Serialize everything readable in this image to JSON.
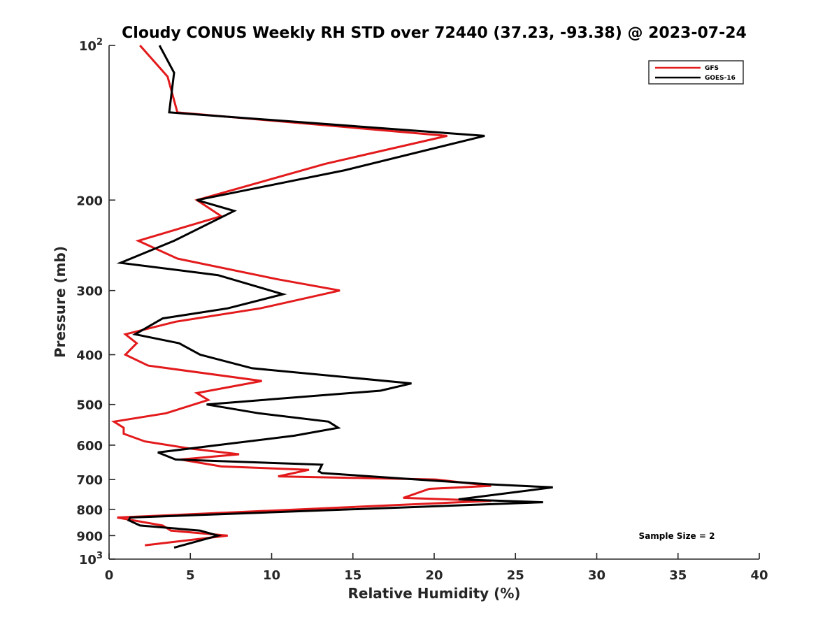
{
  "chart_data": {
    "type": "line",
    "title": "Cloudy CONUS Weekly RH STD over 72440 (37.23, -93.38) @ 2023-07-24",
    "xlabel": "Relative Humidity (%)",
    "ylabel": "Pressure (mb)",
    "xlim": [
      0,
      40
    ],
    "ylim": [
      100,
      1000
    ],
    "yscale": "log",
    "y_reversed": true,
    "x_ticks": [
      "0",
      "5",
      "10",
      "15",
      "20",
      "25",
      "30",
      "35",
      "40"
    ],
    "y_ticks": [
      {
        "value": 100,
        "label": "10",
        "sup": "2"
      },
      {
        "value": 200,
        "label": "200"
      },
      {
        "value": 300,
        "label": "300"
      },
      {
        "value": 400,
        "label": "400"
      },
      {
        "value": 500,
        "label": "500"
      },
      {
        "value": 600,
        "label": "600"
      },
      {
        "value": 700,
        "label": "700"
      },
      {
        "value": 800,
        "label": "800"
      },
      {
        "value": 900,
        "label": "900"
      },
      {
        "value": 1000,
        "label": "10",
        "sup": "3"
      }
    ],
    "legend_position": "top-right",
    "annotation": "Sample Size = 2",
    "series": [
      {
        "name": "GFS",
        "color": "#e31a1c",
        "points": [
          [
            1.9,
            100
          ],
          [
            3.6,
            115
          ],
          [
            4.2,
            135
          ],
          [
            20.8,
            150
          ],
          [
            13.3,
            170
          ],
          [
            5.4,
            200
          ],
          [
            6.9,
            215
          ],
          [
            1.8,
            240
          ],
          [
            4.2,
            260
          ],
          [
            10.3,
            285
          ],
          [
            14.2,
            300
          ],
          [
            9.3,
            325
          ],
          [
            4.1,
            345
          ],
          [
            1.0,
            365
          ],
          [
            1.7,
            380
          ],
          [
            1.0,
            400
          ],
          [
            2.4,
            420
          ],
          [
            9.4,
            450
          ],
          [
            5.4,
            475
          ],
          [
            6.1,
            490
          ],
          [
            3.5,
            520
          ],
          [
            0.3,
            540
          ],
          [
            0.9,
            555
          ],
          [
            0.9,
            570
          ],
          [
            2.2,
            590
          ],
          [
            5.1,
            610
          ],
          [
            8.0,
            625
          ],
          [
            4.4,
            640
          ],
          [
            6.9,
            660
          ],
          [
            12.3,
            670
          ],
          [
            10.4,
            690
          ],
          [
            20.1,
            700
          ],
          [
            23.5,
            720
          ],
          [
            19.7,
            730
          ],
          [
            18.1,
            760
          ],
          [
            23.5,
            770
          ],
          [
            0.5,
            830
          ],
          [
            3.3,
            860
          ],
          [
            3.8,
            880
          ],
          [
            7.3,
            900
          ],
          [
            2.2,
            940
          ]
        ]
      },
      {
        "name": "GOES-16",
        "color": "#000000",
        "points": [
          [
            3.1,
            100
          ],
          [
            4.0,
            113
          ],
          [
            3.7,
            135
          ],
          [
            23.1,
            150
          ],
          [
            14.5,
            175
          ],
          [
            5.4,
            200
          ],
          [
            7.7,
            210
          ],
          [
            4.0,
            240
          ],
          [
            0.7,
            265
          ],
          [
            6.7,
            280
          ],
          [
            10.7,
            305
          ],
          [
            7.3,
            325
          ],
          [
            3.3,
            340
          ],
          [
            1.6,
            365
          ],
          [
            4.3,
            380
          ],
          [
            5.6,
            400
          ],
          [
            8.8,
            425
          ],
          [
            18.6,
            455
          ],
          [
            16.7,
            470
          ],
          [
            6.0,
            500
          ],
          [
            9.2,
            520
          ],
          [
            13.5,
            540
          ],
          [
            14.1,
            555
          ],
          [
            11.4,
            575
          ],
          [
            3.0,
            620
          ],
          [
            4.1,
            640
          ],
          [
            13.1,
            655
          ],
          [
            12.9,
            675
          ],
          [
            13.1,
            680
          ],
          [
            23.3,
            715
          ],
          [
            27.3,
            725
          ],
          [
            21.5,
            765
          ],
          [
            26.7,
            775
          ],
          [
            1.3,
            830
          ],
          [
            1.2,
            840
          ],
          [
            1.9,
            860
          ],
          [
            5.6,
            880
          ],
          [
            6.7,
            900
          ],
          [
            4.0,
            950
          ]
        ]
      }
    ]
  }
}
